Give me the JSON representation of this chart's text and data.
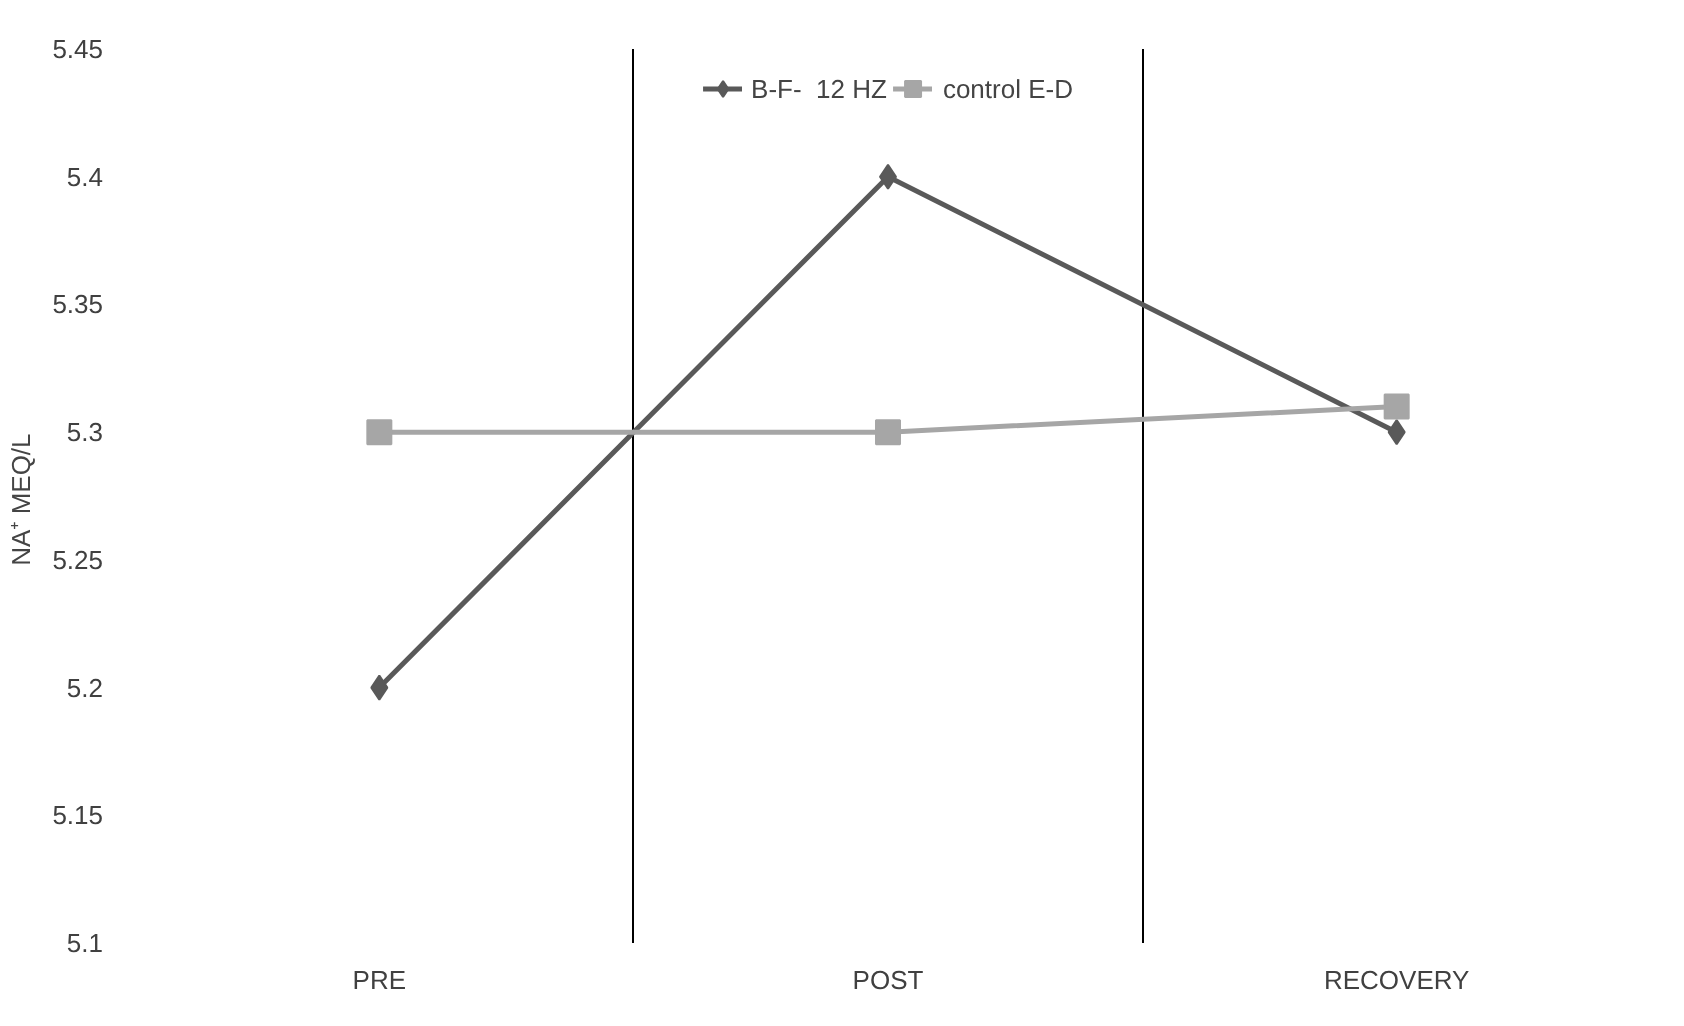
{
  "chart_data": {
    "type": "line",
    "categories": [
      "PRE",
      "POST",
      "RECOVERY"
    ],
    "ylabel": "NA⁺  MEQ/L",
    "ylim": [
      5.1,
      5.45
    ],
    "yticks": [
      5.1,
      5.15,
      5.2,
      5.25,
      5.3,
      5.35,
      5.4,
      5.45
    ],
    "grid": "x",
    "legend": "top",
    "series": [
      {
        "name": "B-F-  12 HZ",
        "color": "#595959",
        "marker": "diamond",
        "values": [
          5.2,
          5.4,
          5.3
        ]
      },
      {
        "name": "control E-D",
        "color": "#a6a6a6",
        "marker": "square",
        "values": [
          5.3,
          5.3,
          5.31
        ]
      }
    ]
  }
}
